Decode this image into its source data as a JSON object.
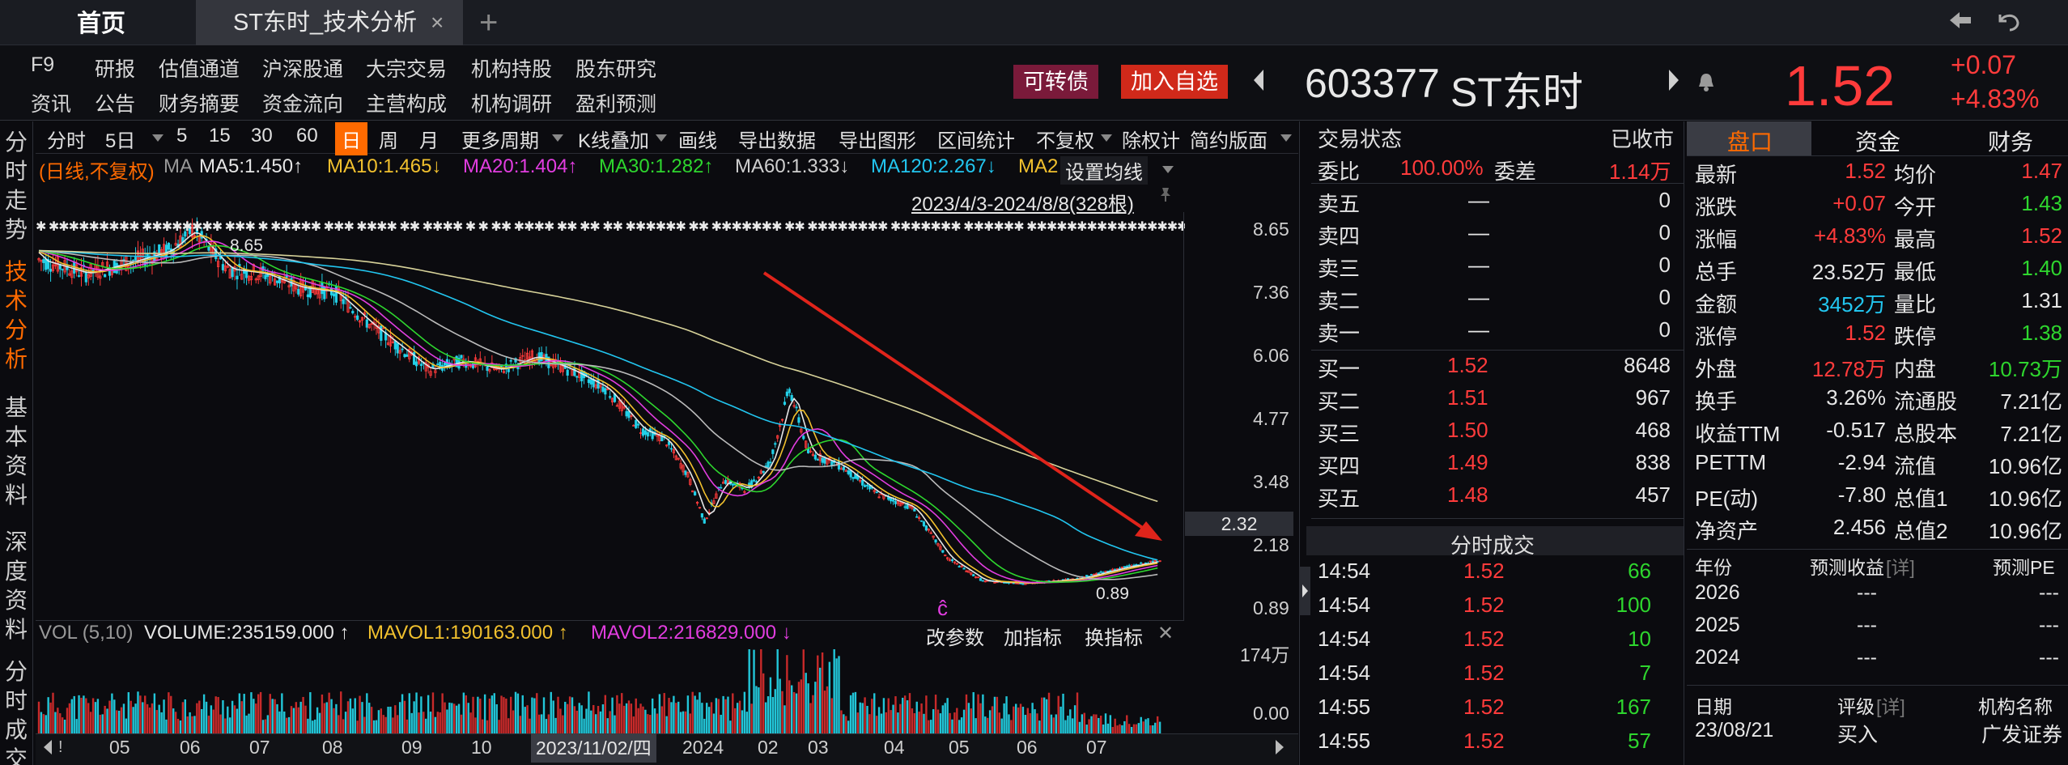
{
  "titlebar": {
    "home_tab": "首页",
    "active_tab": "ST东时_技术分析",
    "close": "×",
    "plus": "+",
    "back_icon": "back-arrow-icon",
    "undo_icon": "undo-icon"
  },
  "menu": {
    "row1": [
      "F9",
      "研报",
      "估值通道",
      "沪深股通",
      "大宗交易",
      "机构持股",
      "股东研究"
    ],
    "row2": [
      "资讯",
      "公告",
      "财务摘要",
      "资金流向",
      "主营构成",
      "机构调研",
      "盈利预测"
    ]
  },
  "actions": {
    "convertible": "可转债",
    "add_watch": "加入自选"
  },
  "stock": {
    "code": "603377",
    "name": "ST东时",
    "price": "1.52",
    "change": "+0.07",
    "change_pct": "+4.83%"
  },
  "left_nav": [
    "分时走势",
    "技术分析",
    "基本资料",
    "深度资料",
    "分时成交"
  ],
  "chart_toolbar": [
    "分时",
    "5日",
    "5",
    "15",
    "30",
    "60",
    "日",
    "周",
    "月",
    "更多周期",
    "K线叠加",
    "画线",
    "导出数据",
    "导出图形",
    "区间统计",
    "不复权",
    "除权计",
    "简约版面"
  ],
  "ma_line": {
    "mode": "(日线,不复权)",
    "ma": "MA",
    "ma5": "MA5:1.450↑",
    "ma10": "MA10:1.465↓",
    "ma20": "MA20:1.404↑",
    "ma30": "MA30:1.282↑",
    "ma60": "MA60:1.333↓",
    "ma120": "MA120:2.267↓",
    "ma250": "MA2",
    "setting": "设置均线"
  },
  "range_label": "2023/4/3-2024/8/8(328根)",
  "price_axis": [
    "8.65",
    "7.36",
    "6.06",
    "4.77",
    "3.48",
    "2.18",
    "0.89"
  ],
  "current_tag": "2.32",
  "high_label": "8.65",
  "low_label": "0.89",
  "vol_line": {
    "vol": "VOL (5,10)",
    "volume": "VOLUME:235159.000 ↑",
    "mavol1": "MAVOL1:190163.000 ↑",
    "mavol2": "MAVOL2:216829.000 ↓",
    "btn1": "改参数",
    "btn2": "加指标",
    "btn3": "换指标"
  },
  "vol_axis": [
    "174万",
    "0.00"
  ],
  "date_axis": [
    "05",
    "06",
    "07",
    "08",
    "09",
    "10",
    "2023/11/02/四",
    "2024",
    "02",
    "03",
    "04",
    "05",
    "06",
    "07"
  ],
  "colors": {
    "up": "#ff3b3b",
    "down": "#2ed62e",
    "cyan": "#22c6f0",
    "accent": "#ff6a00"
  },
  "orderbook": {
    "status_label": "交易状态",
    "status_value": "已收市",
    "wb_label": "委比",
    "wb_value": "100.00%",
    "wc_label": "委差",
    "wc_value": "1.14万",
    "sells": [
      {
        "label": "卖五",
        "price": "—",
        "vol": "0"
      },
      {
        "label": "卖四",
        "price": "—",
        "vol": "0"
      },
      {
        "label": "卖三",
        "price": "—",
        "vol": "0"
      },
      {
        "label": "卖二",
        "price": "—",
        "vol": "0"
      },
      {
        "label": "卖一",
        "price": "—",
        "vol": "0"
      }
    ],
    "buys": [
      {
        "label": "买一",
        "price": "1.52",
        "vol": "8648"
      },
      {
        "label": "买二",
        "price": "1.51",
        "vol": "967"
      },
      {
        "label": "买三",
        "price": "1.50",
        "vol": "468"
      },
      {
        "label": "买四",
        "price": "1.49",
        "vol": "838"
      },
      {
        "label": "买五",
        "price": "1.48",
        "vol": "457"
      }
    ]
  },
  "ticks": {
    "title": "分时成交",
    "rows": [
      {
        "t": "14:54",
        "p": "1.52",
        "v": "66"
      },
      {
        "t": "14:54",
        "p": "1.52",
        "v": "100"
      },
      {
        "t": "14:54",
        "p": "1.52",
        "v": "10"
      },
      {
        "t": "14:54",
        "p": "1.52",
        "v": "7"
      },
      {
        "t": "14:55",
        "p": "1.52",
        "v": "167"
      },
      {
        "t": "14:55",
        "p": "1.52",
        "v": "57"
      }
    ]
  },
  "quote_tabs": [
    "盘口",
    "资金",
    "财务"
  ],
  "quote": [
    {
      "l1": "最新",
      "v1": "1.52",
      "c1": "red",
      "l2": "均价",
      "v2": "1.47",
      "c2": "red"
    },
    {
      "l1": "涨跌",
      "v1": "+0.07",
      "c1": "red",
      "l2": "今开",
      "v2": "1.43",
      "c2": "green"
    },
    {
      "l1": "涨幅",
      "v1": "+4.83%",
      "c1": "red",
      "l2": "最高",
      "v2": "1.52",
      "c2": "red"
    },
    {
      "l1": "总手",
      "v1": "23.52万",
      "c1": "white",
      "l2": "最低",
      "v2": "1.40",
      "c2": "green"
    },
    {
      "l1": "金额",
      "v1": "3452万",
      "c1": "cyan",
      "l2": "量比",
      "v2": "1.31",
      "c2": "white"
    },
    {
      "l1": "涨停",
      "v1": "1.52",
      "c1": "red",
      "l2": "跌停",
      "v2": "1.38",
      "c2": "green"
    },
    {
      "l1": "外盘",
      "v1": "12.78万",
      "c1": "red",
      "l2": "内盘",
      "v2": "10.73万",
      "c2": "green"
    },
    {
      "l1": "换手",
      "v1": "3.26%",
      "c1": "white",
      "l2": "流通股",
      "v2": "7.21亿",
      "c2": "white"
    },
    {
      "l1": "收益TTM",
      "v1": "-0.517",
      "c1": "white",
      "l2": "总股本",
      "v2": "7.21亿",
      "c2": "white"
    },
    {
      "l1": "PETTM",
      "v1": "-2.94",
      "c1": "white",
      "l2": "流值",
      "v2": "10.96亿",
      "c2": "white"
    },
    {
      "l1": "PE(动)",
      "v1": "-7.80",
      "c1": "white",
      "l2": "总值1",
      "v2": "10.96亿",
      "c2": "white"
    },
    {
      "l1": "净资产",
      "v1": "2.456",
      "c1": "white",
      "l2": "总值2",
      "v2": "10.96亿",
      "c2": "white"
    }
  ],
  "forecast": {
    "h1": "年份",
    "h2": "预测收益",
    "h2b": "[详]",
    "h3": "预测PE",
    "rows": [
      {
        "y": "2026",
        "e": "---",
        "pe": "---"
      },
      {
        "y": "2025",
        "e": "---",
        "pe": "---"
      },
      {
        "y": "2024",
        "e": "---",
        "pe": "---"
      }
    ]
  },
  "rating": {
    "h1": "日期",
    "h2": "评级",
    "h2b": "[详]",
    "h3": "机构名称",
    "rows": [
      {
        "d": "23/08/21",
        "r": "买入",
        "org": "广发证券"
      }
    ]
  }
}
